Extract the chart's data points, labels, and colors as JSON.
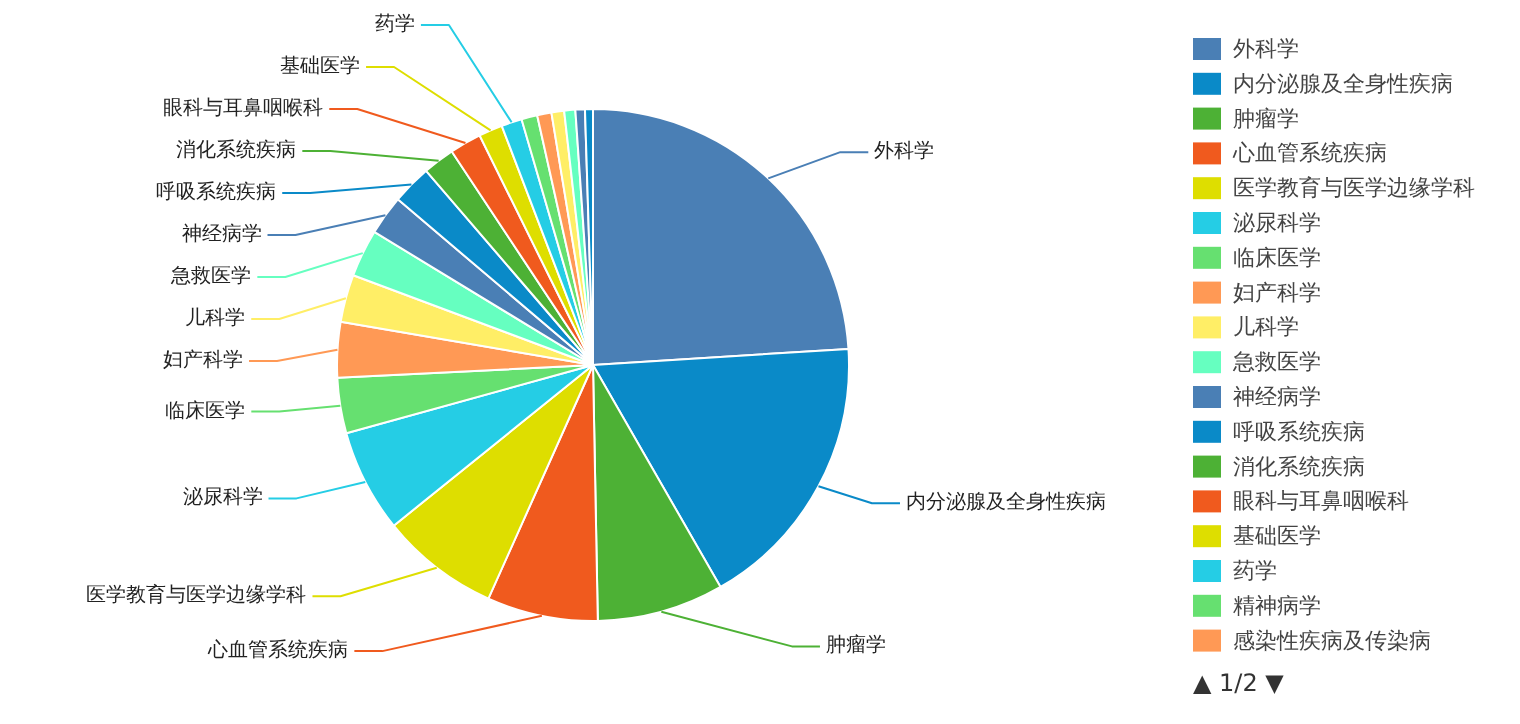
{
  "chart_data": {
    "type": "pie",
    "categories": [
      "外科学",
      "内分泌腺及全身性疾病",
      "肿瘤学",
      "心血管系统疾病",
      "医学教育与医学边缘学科",
      "泌尿科学",
      "临床医学",
      "妇产科学",
      "儿科学",
      "急救医学",
      "神经病学",
      "呼吸系统疾病",
      "消化系统疾病",
      "眼科与耳鼻咽喉科",
      "基础医学",
      "药学",
      "精神病学",
      "感染性疾病及传染病",
      null,
      null,
      null,
      null
    ],
    "values": [
      24,
      17.7,
      8,
      7,
      7.5,
      6.5,
      3.5,
      3.5,
      3,
      3,
      2.5,
      2.5,
      2,
      2,
      1.5,
      1.3,
      1,
      0.9,
      0.8,
      0.7,
      0.6,
      0.5
    ],
    "colors": [
      "#4a7fb5",
      "#0a8ac8",
      "#4db135",
      "#f05a1e",
      "#dede00",
      "#25cde5",
      "#66e070",
      "#ff9955",
      "#ffee66",
      "#66ffc0",
      "#4a7fb5",
      "#0a8ac8",
      "#4db135",
      "#f05a1e",
      "#dede00",
      "#25cde5",
      "#66e070",
      "#ff9955",
      "#ffee66",
      "#66ffc0",
      "#4a7fb5",
      "#0a8ac8"
    ],
    "legend": "right",
    "annotations": [
      "▲ 1/2 ▼"
    ]
  }
}
